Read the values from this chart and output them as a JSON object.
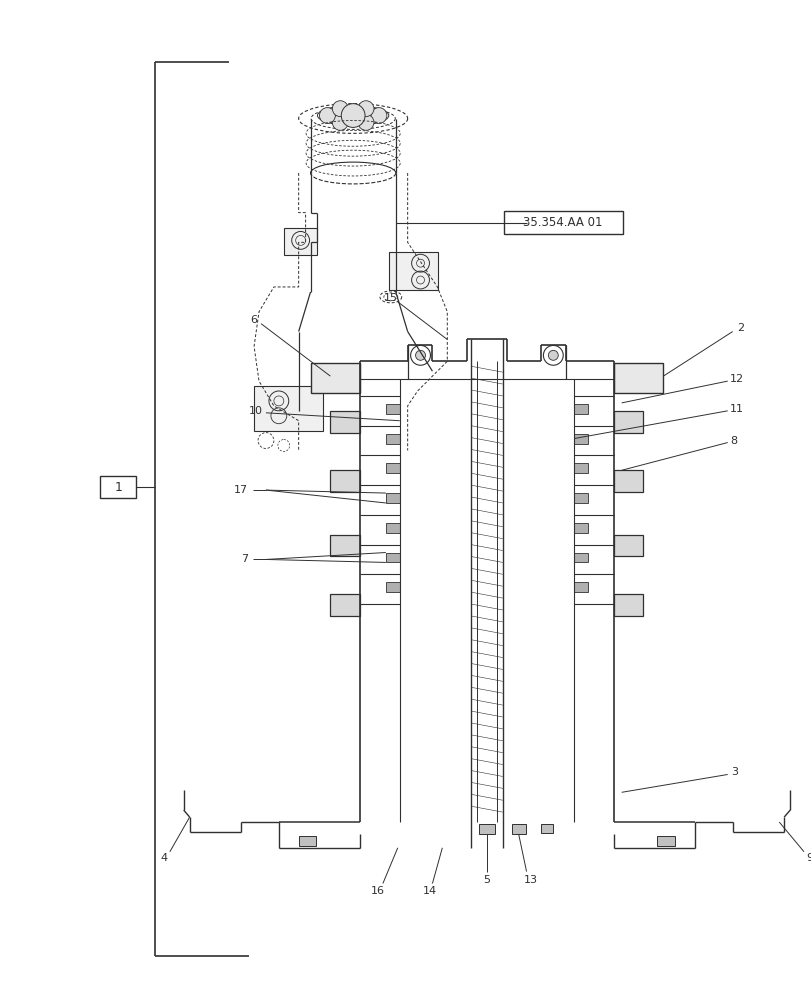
{
  "bg_color": "#ffffff",
  "line_color": "#303030",
  "fig_width": 8.12,
  "fig_height": 10.0,
  "dpi": 100
}
